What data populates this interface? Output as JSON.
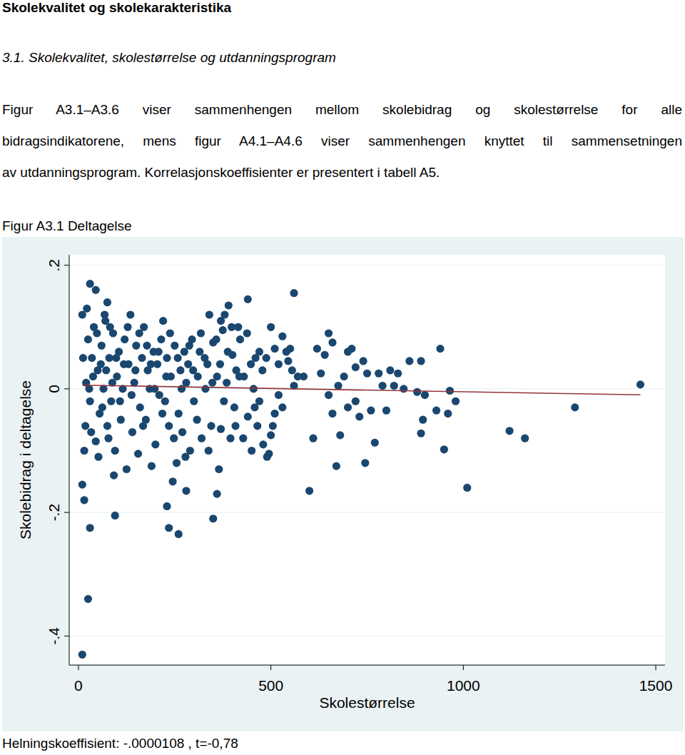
{
  "heading": "Skolekvalitet og skolekarakteristika",
  "section": "3.1. Skolekvalitet, skolestørrelse og utdanningsprogram",
  "paragraph": [
    "Figur A3.1–A3.6 viser sammenhengen mellom skolebidrag og skolestørrelse for alle",
    "bidragsindikatorene, mens figur A4.1–A4.6 viser sammenhengen knyttet til sammensetningen",
    "av utdanningsprogram. Korrelasjonskoeffisienter er presentert i tabell A5."
  ],
  "figure_caption": "Figur A3.1 Deltagelse",
  "chart_data": {
    "type": "scatter",
    "x_label": "Skolestørrelse",
    "y_label": "Skolebidrag i deltagelse",
    "xlim": [
      -24,
      1524
    ],
    "ylim": [
      -0.447,
      0.217
    ],
    "xticks": [
      0,
      500,
      1000,
      1500
    ],
    "yticks": [
      {
        "value": -0.4,
        "label": "-.4"
      },
      {
        "value": -0.2,
        "label": "-.2"
      },
      0,
      {
        "value": 0.2,
        "label": ".2"
      }
    ],
    "grid": true,
    "series": [
      {
        "type": "scatter",
        "color": "#1a476f",
        "marker": "circle",
        "x": [
          10,
          25,
          30,
          15,
          10,
          30,
          45,
          75,
          95,
          230,
          235,
          260,
          245,
          280,
          350,
          360,
          560,
          440,
          600,
          1010,
          1120,
          1160,
          1290,
          1460,
          950,
          940,
          960,
          965,
          890,
          895,
          890,
          860,
          880,
          900,
          930,
          980,
          830,
          810,
          800,
          780,
          770,
          745,
          750,
          740,
          730,
          720,
          710,
          700,
          690,
          680,
          670,
          675,
          650,
          660,
          640,
          630,
          620,
          610,
          650,
          660,
          700,
          720,
          760,
          790,
          820,
          845,
          500,
          510,
          520,
          530,
          540,
          550,
          555,
          560,
          570,
          520,
          510,
          500,
          490,
          480,
          505,
          530,
          545,
          585,
          495,
          470,
          460,
          455,
          470,
          465,
          450,
          440,
          430,
          420,
          415,
          410,
          400,
          405,
          395,
          390,
          380,
          375,
          385,
          370,
          365,
          360,
          350,
          345,
          340,
          335,
          330,
          320,
          315,
          310,
          300,
          295,
          290,
          285,
          280,
          275,
          270,
          265,
          260,
          255,
          250,
          240,
          235,
          230,
          225,
          220,
          215,
          210,
          205,
          200,
          195,
          190,
          185,
          180,
          175,
          170,
          165,
          160,
          155,
          150,
          145,
          140,
          135,
          130,
          125,
          120,
          115,
          110,
          105,
          100,
          95,
          90,
          85,
          80,
          75,
          70,
          65,
          60,
          55,
          50,
          45,
          40,
          35,
          30,
          25,
          20,
          15,
          10,
          12,
          18,
          22,
          28,
          33,
          38,
          48,
          52,
          58,
          62,
          68,
          72,
          78,
          82,
          88,
          92,
          98,
          108,
          118,
          128,
          138,
          148,
          158,
          168,
          178,
          188,
          198,
          208,
          218,
          228,
          238,
          248,
          258,
          268,
          278,
          288,
          298,
          308,
          318,
          328,
          338,
          348,
          358,
          368,
          378,
          388,
          398,
          408,
          418,
          428,
          438,
          448,
          458,
          478,
          488,
          370
        ],
        "values": [
          -0.43,
          -0.34,
          -0.225,
          -0.18,
          -0.155,
          0.17,
          0.16,
          0.14,
          -0.205,
          -0.19,
          -0.225,
          -0.235,
          -0.15,
          -0.165,
          -0.21,
          -0.17,
          0.155,
          0.145,
          -0.165,
          -0.16,
          -0.068,
          -0.08,
          -0.03,
          0.007,
          -0.098,
          0.065,
          -0.04,
          -0.003,
          -0.072,
          -0.05,
          0.045,
          0.045,
          -0.005,
          -0.01,
          -0.035,
          -0.02,
          0.025,
          0.03,
          -0.035,
          0.025,
          -0.087,
          -0.12,
          0.025,
          0.045,
          -0.045,
          0.035,
          0.065,
          0.06,
          0.02,
          -0.075,
          -0.125,
          0.005,
          0.09,
          0.075,
          0.055,
          0.025,
          0.065,
          -0.08,
          -0.01,
          -0.04,
          -0.03,
          -0.02,
          -0.035,
          0.005,
          0.005,
          0.0,
          0.1,
          0.065,
          0.04,
          0.085,
          0.06,
          0.065,
          0.03,
          0.005,
          0.02,
          -0.01,
          -0.04,
          -0.075,
          -0.11,
          -0.09,
          -0.06,
          -0.03,
          0.045,
          0.02,
          -0.105,
          0.06,
          0.05,
          0.0,
          -0.02,
          -0.06,
          -0.1,
          -0.045,
          0.02,
          0.08,
          0.1,
          0.03,
          0.055,
          -0.03,
          -0.08,
          0.135,
          0.12,
          0.095,
          0.01,
          -0.065,
          -0.13,
          0.02,
          0.075,
          -0.06,
          0.12,
          0.04,
          0.0,
          -0.08,
          0.06,
          0.02,
          -0.02,
          0.08,
          -0.1,
          0.04,
          0.01,
          0.06,
          -0.07,
          0.03,
          -0.04,
          -0.12,
          0.07,
          0.02,
          -0.06,
          0.05,
          -0.02,
          0.11,
          0.08,
          -0.01,
          0.04,
          -0.09,
          0.06,
          -0.125,
          0.0,
          0.03,
          -0.05,
          0.1,
          0.05,
          -0.03,
          -0.105,
          0.07,
          0.01,
          -0.07,
          0.12,
          0.04,
          -0.13,
          0.08,
          0.0,
          -0.05,
          0.06,
          0.02,
          -0.1,
          0.09,
          -0.02,
          0.05,
          -0.06,
          0.11,
          0.0,
          0.07,
          -0.04,
          0.03,
          -0.085,
          0.1,
          0.05,
          -0.02,
          0.08,
          0.01,
          -0.1,
          0.12,
          0.05,
          -0.06,
          0.13,
          0.0,
          -0.07,
          0.02,
          0.09,
          -0.11,
          0.04,
          -0.03,
          0.12,
          0.03,
          -0.08,
          0.1,
          0.01,
          -0.14,
          0.05,
          -0.02,
          0.04,
          0.1,
          -0.01,
          0.03,
          0.09,
          -0.06,
          0.07,
          0.04,
          0.0,
          0.06,
          -0.04,
          0.02,
          0.09,
          -0.08,
          0.05,
          0.0,
          -0.11,
          0.07,
          0.03,
          -0.05,
          0.09,
          0.05,
          -0.1,
          0.01,
          0.08,
          0.04,
          -0.02,
          0.06,
          0.1,
          -0.06,
          0.02,
          -0.08,
          0.09,
          0.04,
          -0.03,
          0.03,
          0.05,
          0.11
        ]
      },
      {
        "type": "line",
        "color": "#90353b",
        "line_style": "solid",
        "x": [
          10,
          1460
        ],
        "values": [
          0.006,
          -0.0097
        ]
      }
    ]
  },
  "footer": "Helningskoeffisient: -.0000108 , t=-0,78"
}
